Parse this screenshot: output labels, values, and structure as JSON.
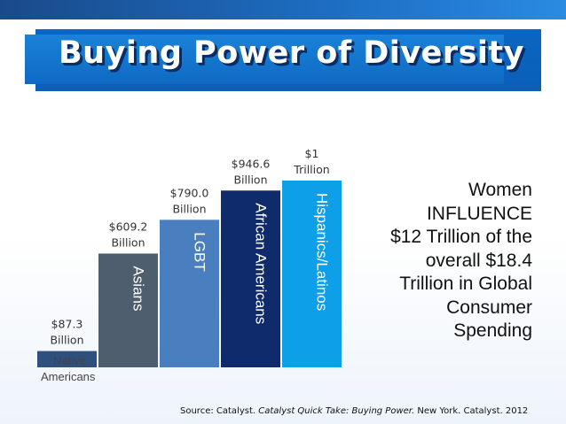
{
  "title": "Buying Power of Diversity",
  "chart_data": {
    "type": "bar",
    "categories": [
      "Native Americans",
      "Asians",
      "LGBT",
      "African Americans",
      "Hispanics/Latinos"
    ],
    "values": [
      87.3,
      609.2,
      790.0,
      946.6,
      1000
    ],
    "unit": "Billion USD",
    "value_labels": [
      [
        "$87.3",
        "Billion"
      ],
      [
        "$609.2",
        "Billion"
      ],
      [
        "$790.0",
        "Billion"
      ],
      [
        "$946.6",
        "Billion"
      ],
      [
        "$1",
        "Trillion"
      ]
    ],
    "bar_labels": [
      "",
      "Asians",
      "LGBT",
      "African Americans",
      "Hispanics/Latinos"
    ],
    "below_label": [
      "Native",
      "Americans"
    ],
    "colors": [
      "#2f4f7f",
      "#4e5e6e",
      "#4a7fbf",
      "#0f2b6b",
      "#0d9fe8"
    ],
    "ylim": [
      0,
      1000
    ],
    "axes_visible": false
  },
  "women_text": [
    "Women",
    "INFLUENCE",
    "$12 Trillion of the",
    "overall $18.4",
    "Trillion in Global",
    "Consumer",
    "Spending"
  ],
  "source": {
    "prefix": "Source:  Catalyst.  ",
    "italic": "Catalyst Quick Take: Buying Power.",
    "suffix": "  New York. Catalyst. 2012"
  }
}
